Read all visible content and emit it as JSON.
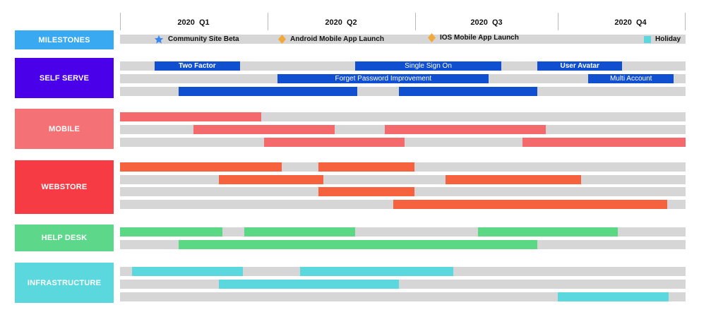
{
  "quarters": [
    "2020  Q1",
    "2020  Q2",
    "2020  Q3",
    "2020  Q4"
  ],
  "milestones": [
    {
      "label": "Community Site Beta",
      "icon": "star-icon",
      "color": "#3a86f0"
    },
    {
      "label": "Android Mobile App Launch",
      "icon": "diamond-icon",
      "color": "#f2a93b"
    },
    {
      "label": "IOS Mobile App Launch",
      "icon": "diamond-icon",
      "color": "#f2a93b"
    },
    {
      "label": "Holiday",
      "icon": "square-icon",
      "color": "#5ad8de"
    }
  ],
  "categories": [
    {
      "name": "MILESTONES",
      "color": "#39a9f2",
      "slug": "milestones",
      "rows": []
    },
    {
      "name": "SELF SERVE",
      "color": "#4a00e8",
      "bar_color": "#0f4fd0",
      "slug": "self-serve",
      "rows": [
        [
          {
            "start": 0.061,
            "end": 0.212,
            "label": "Two Factor",
            "bold": true
          },
          {
            "start": 0.416,
            "end": 0.674,
            "label": "Single Sign On"
          },
          {
            "start": 0.738,
            "end": 0.888,
            "label": "User Avatar",
            "bold": true
          }
        ],
        [
          {
            "start": 0.279,
            "end": 0.652,
            "label": "Forget Password Improvement"
          },
          {
            "start": 0.828,
            "end": 0.979,
            "label": "Multi Account"
          }
        ],
        [
          {
            "start": 0.104,
            "end": 0.42,
            "label": ""
          },
          {
            "start": 0.493,
            "end": 0.738,
            "label": ""
          }
        ]
      ]
    },
    {
      "name": "MOBILE",
      "color": "#f47275",
      "bar_color": "#f4696c",
      "slug": "mobile",
      "rows": [
        [
          {
            "start": 0.0,
            "end": 0.25,
            "label": ""
          }
        ],
        [
          {
            "start": 0.13,
            "end": 0.379,
            "label": ""
          },
          {
            "start": 0.468,
            "end": 0.753,
            "label": ""
          }
        ],
        [
          {
            "start": 0.255,
            "end": 0.503,
            "label": ""
          },
          {
            "start": 0.712,
            "end": 1.0,
            "label": ""
          }
        ]
      ]
    },
    {
      "name": "WEBSTORE",
      "color": "#f73b45",
      "bar_color": "#f6623d",
      "slug": "webstore",
      "rows": [
        [
          {
            "start": 0.0,
            "end": 0.286,
            "label": ""
          },
          {
            "start": 0.351,
            "end": 0.521,
            "label": ""
          }
        ],
        [
          {
            "start": 0.175,
            "end": 0.36,
            "label": ""
          },
          {
            "start": 0.575,
            "end": 0.815,
            "label": ""
          }
        ],
        [
          {
            "start": 0.351,
            "end": 0.521,
            "label": ""
          }
        ],
        [
          {
            "start": 0.483,
            "end": 0.967,
            "label": ""
          }
        ]
      ]
    },
    {
      "name": "HELP DESK",
      "color": "#5dd88a",
      "bar_color": "#5bd884",
      "slug": "help-desk",
      "rows": [
        [
          {
            "start": 0.0,
            "end": 0.181,
            "label": ""
          },
          {
            "start": 0.22,
            "end": 0.416,
            "label": ""
          },
          {
            "start": 0.633,
            "end": 0.88,
            "label": ""
          }
        ],
        [
          {
            "start": 0.104,
            "end": 0.738,
            "label": ""
          }
        ]
      ]
    },
    {
      "name": "INFRASTRUCTURE",
      "color": "#5ad8de",
      "bar_color": "#5ad8de",
      "slug": "infrastructure",
      "rows": [
        [
          {
            "start": 0.021,
            "end": 0.217,
            "label": ""
          },
          {
            "start": 0.318,
            "end": 0.589,
            "label": ""
          }
        ],
        [
          {
            "start": 0.175,
            "end": 0.493,
            "label": ""
          }
        ],
        [
          {
            "start": 0.774,
            "end": 0.97,
            "label": ""
          }
        ]
      ]
    }
  ]
}
